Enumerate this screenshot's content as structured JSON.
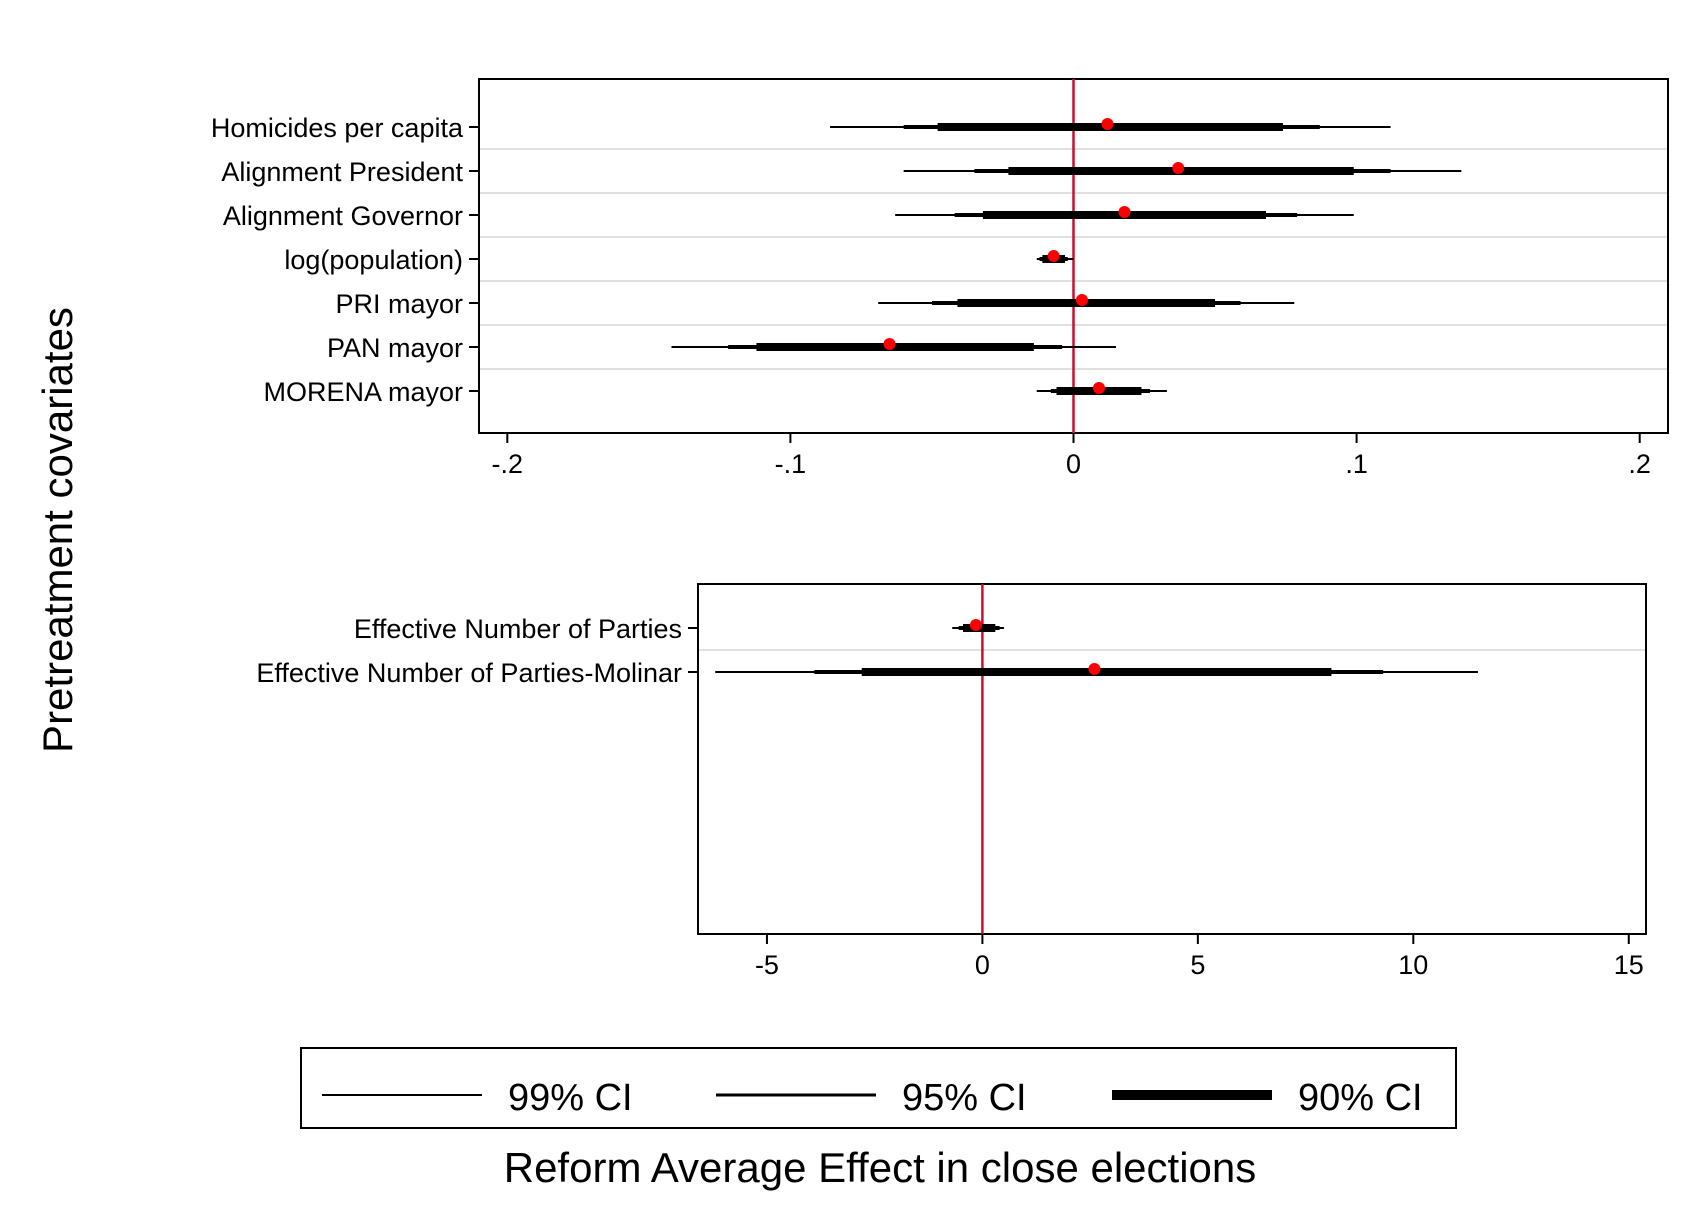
{
  "figure": {
    "ylabel": "Pretreatment covariates",
    "xlabel": "Reform Average Effect in close elections",
    "colors": {
      "point": "#ff0000",
      "zero_line": "#c8102e",
      "ci": "#000000",
      "separator": "#e0e0e0",
      "frame": "#000000"
    },
    "legend": {
      "placement": "bottom",
      "items": [
        {
          "label": "99% CI",
          "weight": "thin"
        },
        {
          "label": "95% CI",
          "weight": "medium"
        },
        {
          "label": "90% CI",
          "weight": "thick"
        }
      ]
    }
  },
  "chart_data": [
    {
      "type": "coefplot",
      "xlim": [
        -0.21,
        0.21
      ],
      "xticks": [
        -0.2,
        -0.1,
        0,
        0.1,
        0.2
      ],
      "xtick_labels": [
        "-.2",
        "-.1",
        "0",
        ".1",
        ".2"
      ],
      "reference_line": 0,
      "grid": false,
      "rows": [
        {
          "label": "Homicides per capita",
          "estimate": 0.012,
          "ci90": [
            -0.048,
            0.074
          ],
          "ci95": [
            -0.06,
            0.087
          ],
          "ci99": [
            -0.086,
            0.112
          ]
        },
        {
          "label": "Alignment President",
          "estimate": 0.037,
          "ci90": [
            -0.023,
            0.099
          ],
          "ci95": [
            -0.035,
            0.112
          ],
          "ci99": [
            -0.06,
            0.137
          ]
        },
        {
          "label": "Alignment Governor",
          "estimate": 0.018,
          "ci90": [
            -0.032,
            0.068
          ],
          "ci95": [
            -0.042,
            0.079
          ],
          "ci99": [
            -0.063,
            0.099
          ]
        },
        {
          "label": "log(population)",
          "estimate": -0.007,
          "ci90": [
            -0.011,
            -0.003
          ],
          "ci95": [
            -0.012,
            -0.002
          ],
          "ci99": [
            -0.013,
            0.0
          ]
        },
        {
          "label": "PRI mayor",
          "estimate": 0.003,
          "ci90": [
            -0.041,
            0.05
          ],
          "ci95": [
            -0.05,
            0.059
          ],
          "ci99": [
            -0.069,
            0.078
          ]
        },
        {
          "label": "PAN mayor",
          "estimate": -0.065,
          "ci90": [
            -0.112,
            -0.014
          ],
          "ci95": [
            -0.122,
            -0.004
          ],
          "ci99": [
            -0.142,
            0.015
          ]
        },
        {
          "label": "MORENA mayor",
          "estimate": 0.009,
          "ci90": [
            -0.006,
            0.024
          ],
          "ci95": [
            -0.008,
            0.027
          ],
          "ci99": [
            -0.013,
            0.033
          ]
        }
      ]
    },
    {
      "type": "coefplot",
      "xlim": [
        -6.6,
        15.4
      ],
      "xticks": [
        -5,
        0,
        5,
        10,
        15
      ],
      "xtick_labels": [
        "-5",
        "0",
        "5",
        "10",
        "15"
      ],
      "reference_line": 0,
      "grid": false,
      "rows": [
        {
          "label": "Effective Number of Parties",
          "estimate": -0.15,
          "ci90": [
            -0.45,
            0.3
          ],
          "ci95": [
            -0.55,
            0.4
          ],
          "ci99": [
            -0.7,
            0.5
          ]
        },
        {
          "label": "Effective Number of Parties-Molinar",
          "estimate": 2.6,
          "ci90": [
            -2.8,
            8.1
          ],
          "ci95": [
            -3.9,
            9.3
          ],
          "ci99": [
            -6.2,
            11.5
          ]
        }
      ]
    }
  ]
}
